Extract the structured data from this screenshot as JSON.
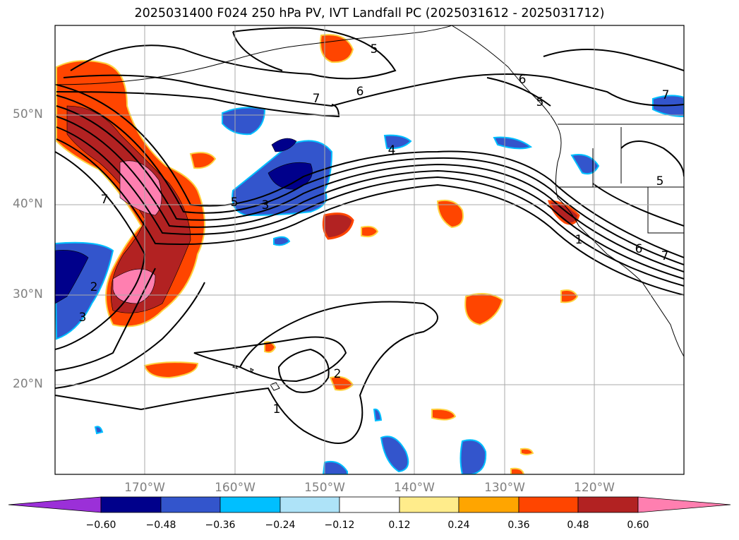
{
  "title": "2025031400 F024 250 hPa PV, IVT Landfall PC (2025031612 - 2025031712)",
  "map": {
    "projection": "PlateCarree",
    "lon_range": [
      -180,
      -110
    ],
    "lat_range": [
      10,
      60
    ],
    "lat_labels": [
      "20°N",
      "30°N",
      "40°N",
      "50°N"
    ],
    "lon_labels": [
      "170°W",
      "160°W",
      "150°W",
      "140°W",
      "130°W",
      "120°W"
    ],
    "gridlines": true
  },
  "contour_labels": [
    "5",
    "6",
    "7",
    "6",
    "5",
    "7",
    "7",
    "4",
    "5",
    "3",
    "5",
    "6",
    "7",
    "1",
    "2",
    "3",
    "2",
    "1"
  ],
  "colorbar": {
    "ticks": [
      "−0.60",
      "−0.48",
      "−0.36",
      "−0.24",
      "−0.12",
      "0.12",
      "0.24",
      "0.36",
      "0.48",
      "0.60"
    ],
    "colors": [
      "#9b30d8",
      "#00008b",
      "#3355cc",
      "#00bfff",
      "#aee3f8",
      "#ffffff",
      "#ffec8b",
      "#ffa500",
      "#ff4500",
      "#b22222",
      "#ff7fb0"
    ]
  }
}
